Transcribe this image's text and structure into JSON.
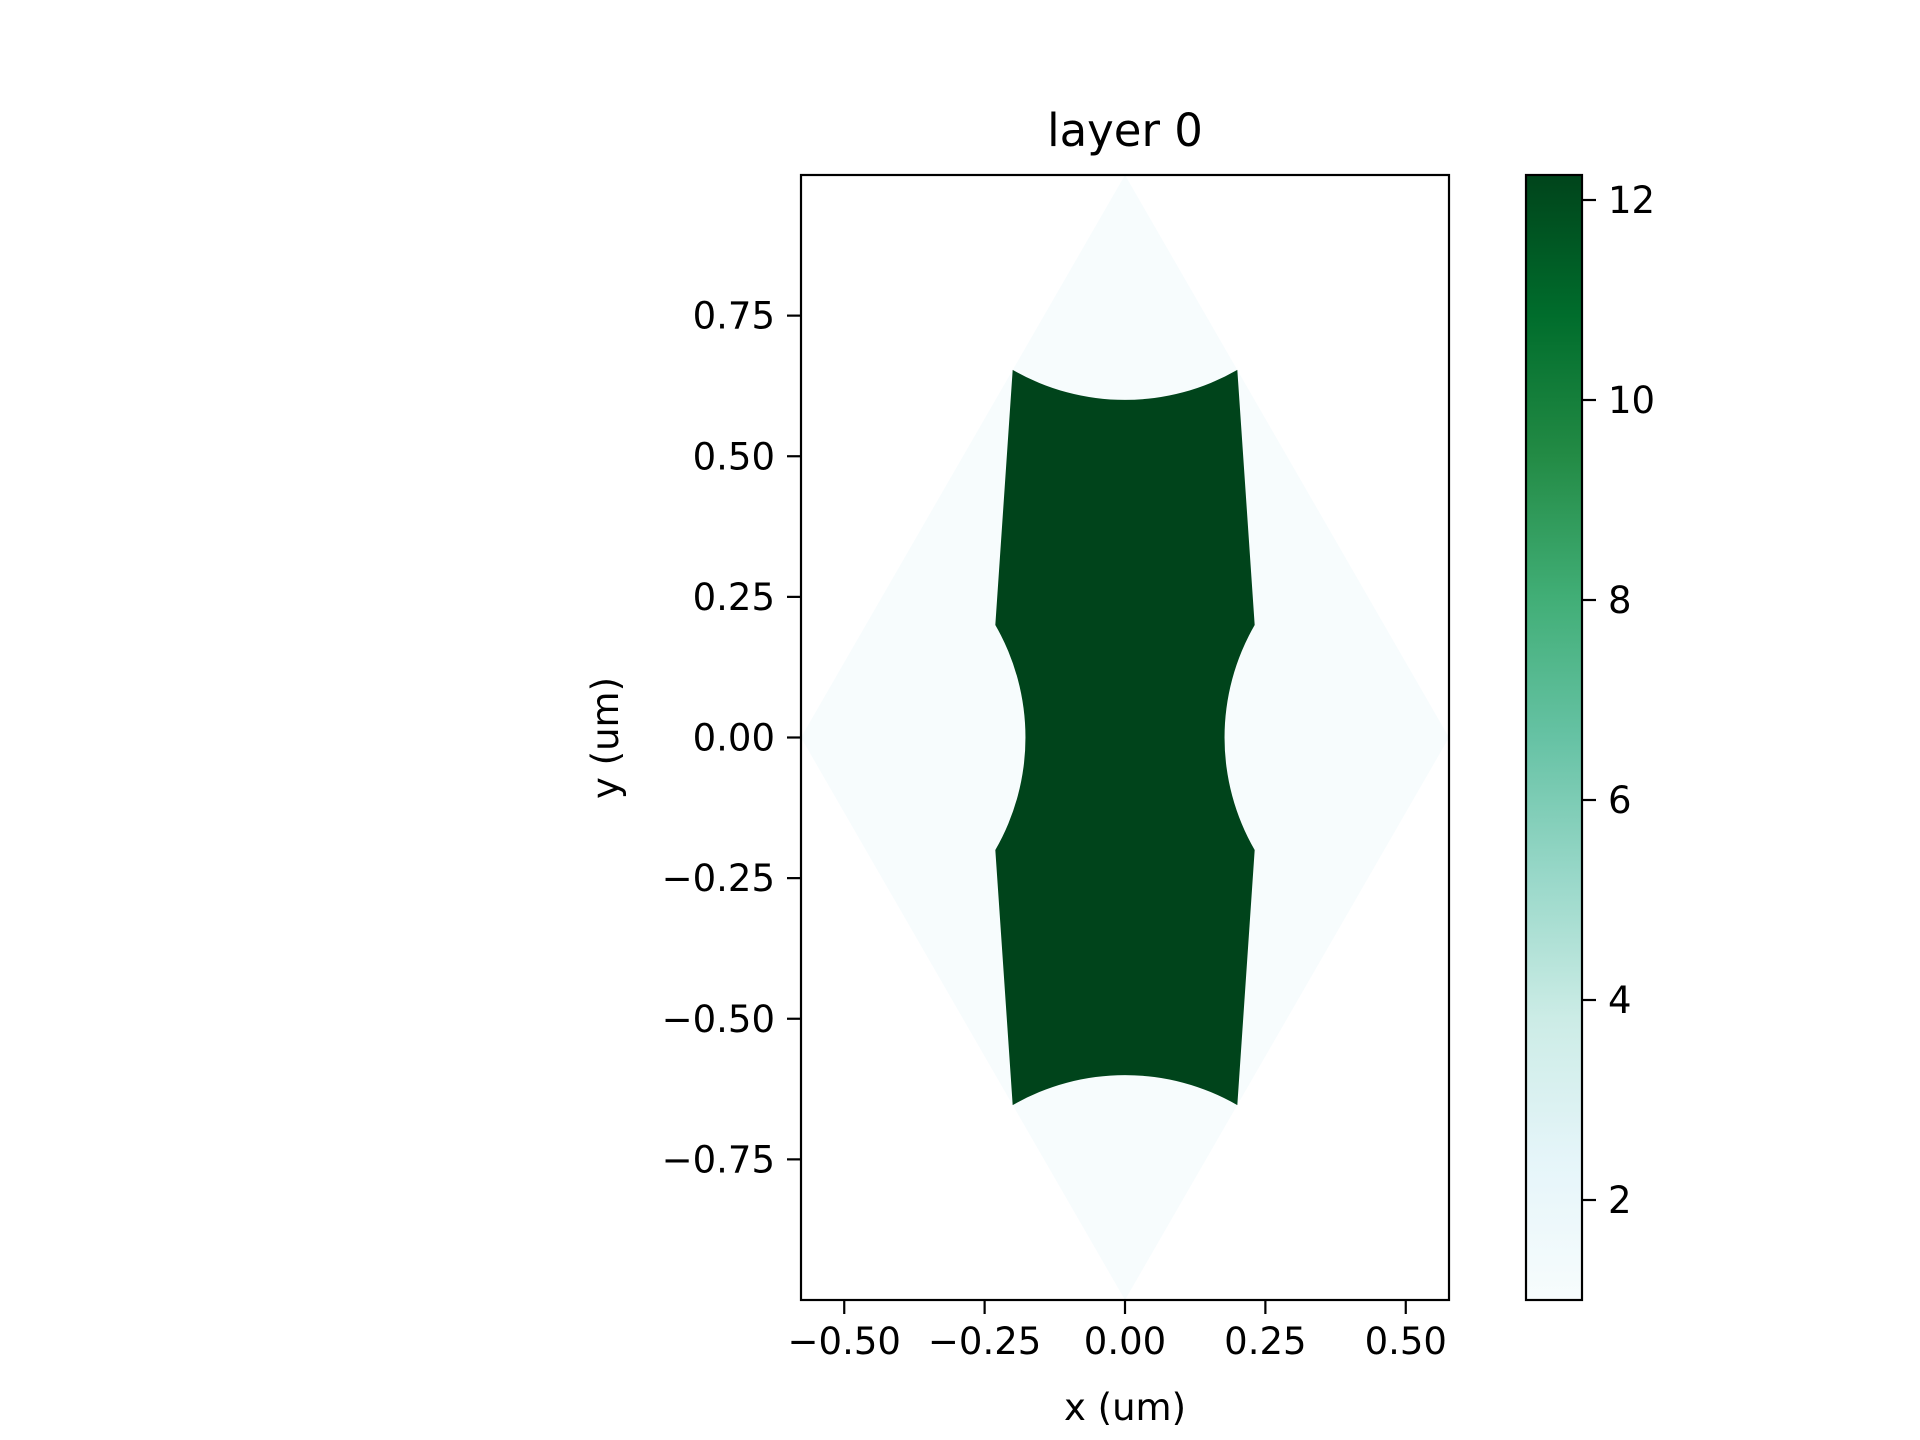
{
  "chart_data": {
    "type": "heatmap",
    "title": "layer 0",
    "xlabel": "x (um)",
    "ylabel": "y (um)",
    "xlim": [
      -0.577,
      0.577
    ],
    "ylim": [
      -1.0,
      1.0
    ],
    "xticks": [
      -0.5,
      -0.25,
      0.0,
      0.25,
      0.5
    ],
    "xtick_labels": [
      "−0.50",
      "−0.25",
      "0.00",
      "0.25",
      "0.50"
    ],
    "yticks": [
      0.75,
      0.5,
      0.25,
      0.0,
      -0.25,
      -0.5,
      -0.75
    ],
    "ytick_labels": [
      "0.75",
      "0.50",
      "0.25",
      "0.00",
      "−0.25",
      "−0.50",
      "−0.75"
    ],
    "colormap": "BuGn",
    "colorbar": {
      "range": [
        1.0,
        12.25
      ],
      "ticks": [
        2,
        4,
        6,
        8,
        10,
        12
      ],
      "tick_labels": [
        "2",
        "4",
        "6",
        "8",
        "10",
        "12"
      ]
    },
    "regions": {
      "background_value": 1.0,
      "material_value": 12.25,
      "rhombus_vertices": [
        [
          0.0,
          1.0
        ],
        [
          0.577,
          0.0
        ],
        [
          0.0,
          -1.0
        ],
        [
          -0.577,
          0.0
        ]
      ],
      "hole_radius": 0.4,
      "hole_centers": [
        [
          0.577,
          0.0
        ],
        [
          -0.577,
          0.0
        ],
        [
          0.0,
          1.0
        ],
        [
          0.0,
          -1.0
        ]
      ]
    },
    "colors": {
      "material": "#00441b",
      "background": "#f7fcfd"
    }
  }
}
